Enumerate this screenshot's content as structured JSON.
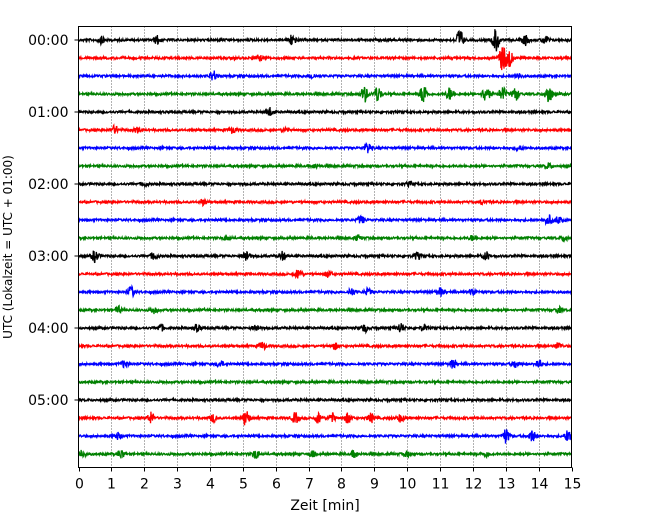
{
  "chart_data": {
    "type": "line",
    "title": "",
    "xlabel": "Zeit  [min]",
    "ylabel": "UTC (Lokalzeit = UTC + 01:00)",
    "xlim": [
      0,
      15
    ],
    "x_ticks": [
      "0",
      "1",
      "2",
      "3",
      "4",
      "5",
      "6",
      "7",
      "8",
      "9",
      "10",
      "11",
      "12",
      "13",
      "14",
      "15"
    ],
    "y_tick_labels": [
      "00:00",
      "01:00",
      "02:00",
      "03:00",
      "04:00",
      "05:00"
    ],
    "grid": "vertical dotted",
    "trace_interval_minutes": 15,
    "traces_per_hour": 4,
    "colors": [
      "#000000",
      "#ff0000",
      "#0000ff",
      "#008000"
    ],
    "traces": [
      {
        "start": "00:00",
        "color": "#000000",
        "events": [
          [
            0.7,
            1.0
          ],
          [
            2.4,
            1.3
          ],
          [
            6.5,
            1.8
          ],
          [
            11.6,
            3.4
          ],
          [
            12.7,
            3.8
          ],
          [
            13.6,
            1.6
          ],
          [
            14.2,
            1.4
          ]
        ]
      },
      {
        "start": "00:15",
        "color": "#ff0000",
        "events": [
          [
            5.5,
            0.8
          ],
          [
            12.9,
            4.0
          ],
          [
            13.1,
            3.0
          ]
        ]
      },
      {
        "start": "00:30",
        "color": "#0000ff",
        "events": [
          [
            4.1,
            1.6
          ],
          [
            7.1,
            0.8
          ],
          [
            13.4,
            0.8
          ]
        ]
      },
      {
        "start": "00:45",
        "color": "#008000",
        "events": [
          [
            8.7,
            2.5
          ],
          [
            9.1,
            2.4
          ],
          [
            10.5,
            3.2
          ],
          [
            11.3,
            2.0
          ],
          [
            12.4,
            3.0
          ],
          [
            12.9,
            2.2
          ],
          [
            13.3,
            2.0
          ],
          [
            14.3,
            3.2
          ]
        ]
      },
      {
        "start": "01:00",
        "color": "#000000",
        "events": [
          [
            5.8,
            1.4
          ]
        ]
      },
      {
        "start": "01:15",
        "color": "#ff0000",
        "events": [
          [
            1.1,
            1.2
          ],
          [
            1.8,
            0.8
          ],
          [
            4.7,
            0.9
          ],
          [
            6.3,
            0.7
          ]
        ]
      },
      {
        "start": "01:30",
        "color": "#0000ff",
        "events": [
          [
            8.8,
            1.8
          ],
          [
            13.4,
            0.8
          ]
        ]
      },
      {
        "start": "01:45",
        "color": "#008000",
        "events": [
          [
            7.2,
            0.7
          ],
          [
            14.3,
            0.9
          ]
        ]
      },
      {
        "start": "02:00",
        "color": "#000000",
        "events": [
          [
            2.0,
            0.7
          ],
          [
            10.1,
            0.7
          ]
        ]
      },
      {
        "start": "02:15",
        "color": "#ff0000",
        "events": [
          [
            3.8,
            0.9
          ],
          [
            12.3,
            0.7
          ]
        ]
      },
      {
        "start": "02:30",
        "color": "#0000ff",
        "events": [
          [
            8.6,
            1.2
          ],
          [
            14.3,
            1.6
          ],
          [
            14.6,
            1.2
          ]
        ]
      },
      {
        "start": "02:45",
        "color": "#008000",
        "events": [
          [
            4.5,
            0.8
          ],
          [
            8.5,
            0.8
          ],
          [
            12.0,
            0.9
          ],
          [
            14.8,
            1.0
          ]
        ]
      },
      {
        "start": "03:00",
        "color": "#000000",
        "events": [
          [
            0.5,
            1.8
          ],
          [
            2.3,
            1.2
          ],
          [
            5.1,
            1.9
          ],
          [
            6.2,
            1.3
          ],
          [
            10.3,
            1.1
          ],
          [
            12.4,
            1.3
          ]
        ]
      },
      {
        "start": "03:15",
        "color": "#ff0000",
        "events": [
          [
            6.7,
            1.6
          ],
          [
            7.6,
            1.0
          ]
        ]
      },
      {
        "start": "03:30",
        "color": "#0000ff",
        "events": [
          [
            1.6,
            1.7
          ],
          [
            8.3,
            1.2
          ],
          [
            8.8,
            1.0
          ],
          [
            11.0,
            1.3
          ],
          [
            12.0,
            1.0
          ]
        ]
      },
      {
        "start": "03:45",
        "color": "#008000",
        "events": [
          [
            1.2,
            1.1
          ],
          [
            2.3,
            1.0
          ],
          [
            14.6,
            0.9
          ]
        ]
      },
      {
        "start": "04:00",
        "color": "#000000",
        "events": [
          [
            2.5,
            1.1
          ],
          [
            3.6,
            1.0
          ],
          [
            5.4,
            1.0
          ],
          [
            8.7,
            1.2
          ],
          [
            9.8,
            1.5
          ],
          [
            10.5,
            0.9
          ]
        ]
      },
      {
        "start": "04:15",
        "color": "#ff0000",
        "events": [
          [
            5.6,
            1.2
          ],
          [
            7.8,
            1.0
          ],
          [
            14.6,
            1.1
          ]
        ]
      },
      {
        "start": "04:30",
        "color": "#0000ff",
        "events": [
          [
            1.4,
            1.1
          ],
          [
            4.3,
            1.0
          ],
          [
            11.4,
            1.3
          ],
          [
            13.3,
            1.2
          ],
          [
            14.0,
            1.4
          ]
        ]
      },
      {
        "start": "04:45",
        "color": "#008000",
        "events": []
      },
      {
        "start": "05:00",
        "color": "#000000",
        "events": []
      },
      {
        "start": "05:15",
        "color": "#ff0000",
        "events": [
          [
            2.2,
            1.8
          ],
          [
            4.1,
            1.3
          ],
          [
            5.1,
            2.6
          ],
          [
            6.6,
            1.6
          ],
          [
            7.3,
            1.6
          ],
          [
            7.7,
            1.5
          ],
          [
            8.2,
            1.6
          ],
          [
            8.9,
            1.4
          ],
          [
            9.8,
            1.2
          ]
        ]
      },
      {
        "start": "05:30",
        "color": "#0000ff",
        "events": [
          [
            1.2,
            1.0
          ],
          [
            13.0,
            2.2
          ],
          [
            13.8,
            1.8
          ],
          [
            14.9,
            1.8
          ]
        ]
      },
      {
        "start": "05:45",
        "color": "#008000",
        "events": [
          [
            0.1,
            1.3
          ],
          [
            1.3,
            1.5
          ],
          [
            5.4,
            1.4
          ],
          [
            7.1,
            1.0
          ],
          [
            8.4,
            1.1
          ],
          [
            10.0,
            0.8
          ],
          [
            12.4,
            0.8
          ]
        ]
      }
    ]
  }
}
